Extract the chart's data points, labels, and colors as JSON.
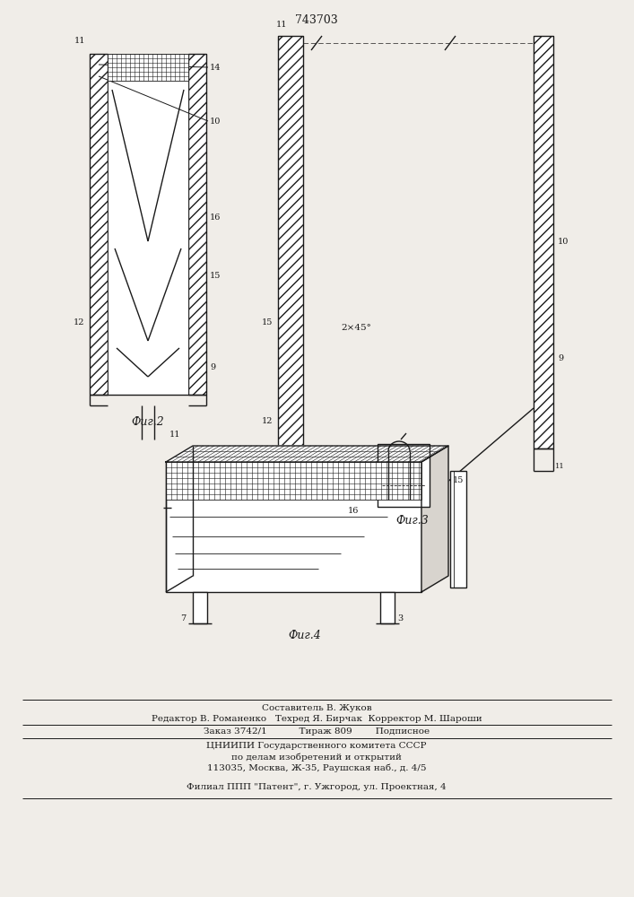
{
  "title": "743703",
  "bg_color": "#f0ede8",
  "line_color": "#1a1a1a",
  "fig2_label": "Фиг.2",
  "fig3_label": "Фиг.3",
  "fig4_label": "Фиг.4",
  "footer_line0": "Составитель В. Жуков",
  "footer_line1": "Редактор В. Романенко   Техред Я. Бирчак  Корректор М. Шароши",
  "footer_line2": "Заказ 3742/1           Тираж 809        Подписное",
  "footer_line3": "ЦНИИПИ Государственного комитета СССР",
  "footer_line4": "по делам изобретений и открытий",
  "footer_line5": "113035, Москва, Ж-35, Раушская наб., д. 4/5",
  "footer_line6": "Филиал ППП \"Патент\", г. Ужгород, ул. Проектная, 4",
  "angle_label": "2×45°"
}
